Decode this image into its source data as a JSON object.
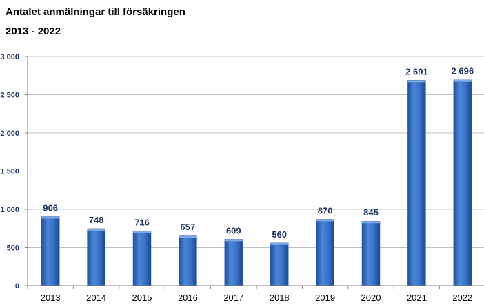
{
  "chart_data": {
    "type": "bar",
    "title": "Antalet anmälningar till försäkringen",
    "subtitle": "2013 - 2022",
    "categories": [
      "2013",
      "2014",
      "2015",
      "2016",
      "2017",
      "2018",
      "2019",
      "2020",
      "2021",
      "2022"
    ],
    "values": [
      906,
      748,
      716,
      657,
      609,
      560,
      870,
      845,
      2691,
      2696
    ],
    "data_labels": [
      "906",
      "748",
      "716",
      "657",
      "609",
      "560",
      "870",
      "845",
      "2 691",
      "2 696"
    ],
    "ylim": [
      0,
      3000
    ],
    "yticks": [
      0,
      500,
      1000,
      1500,
      2000,
      2500,
      3000
    ],
    "ytick_labels": [
      "0",
      "500",
      "1 000",
      "1 500",
      "2 000",
      "2 500",
      "3 000"
    ],
    "xlabel": "",
    "ylabel": "",
    "grid": true,
    "bar_color": "#3a74c9",
    "label_color": "#1f3864"
  }
}
